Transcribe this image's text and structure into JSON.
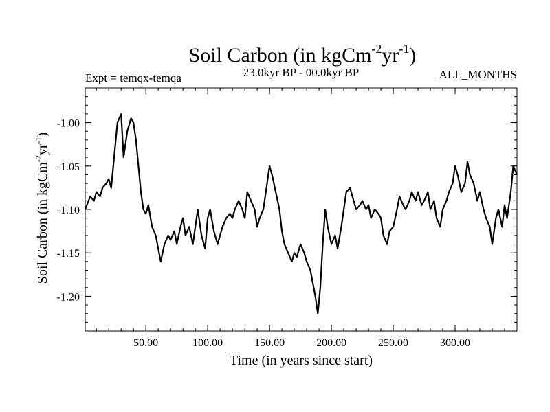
{
  "chart_data": {
    "type": "line",
    "title": {
      "base": "Soil Carbon (in kgCm",
      "sup1": "-2",
      "mid": "yr",
      "sup2": "-1",
      "end": ")"
    },
    "subtitle_left": "Expt = temqx-temqa",
    "subtitle_center": "23.0kyr BP - 00.0kyr BP",
    "subtitle_right": "ALL_MONTHS",
    "xlabel": "Time (in years since start)",
    "ylabel": {
      "base": "Soil Carbon (in kgCm",
      "sup1": "-2",
      "mid": "yr",
      "sup2": "-1",
      "end": ")"
    },
    "xlim": [
      1,
      350
    ],
    "ylim": [
      -1.24,
      -0.96
    ],
    "xticks": [
      {
        "value": 50,
        "label": "50.00"
      },
      {
        "value": 100,
        "label": "100.00"
      },
      {
        "value": 150,
        "label": "150.00"
      },
      {
        "value": 200,
        "label": "200.00"
      },
      {
        "value": 250,
        "label": "250.00"
      },
      {
        "value": 300,
        "label": "300.00"
      }
    ],
    "xminor_step": 10,
    "yticks": [
      {
        "value": -1.0,
        "label": "-1.00"
      },
      {
        "value": -1.05,
        "label": "-1.05"
      },
      {
        "value": -1.1,
        "label": "-1.10"
      },
      {
        "value": -1.15,
        "label": "-1.15"
      },
      {
        "value": -1.2,
        "label": "-1.20"
      }
    ],
    "yminor_step": 0.01,
    "grid": false,
    "series": [
      {
        "name": "Soil Carbon",
        "color": "#000000",
        "x": [
          1,
          5,
          8,
          10,
          13,
          15,
          18,
          20,
          22,
          25,
          27,
          30,
          32,
          35,
          38,
          40,
          42,
          44,
          46,
          48,
          50,
          52,
          55,
          58,
          60,
          62,
          65,
          68,
          70,
          73,
          75,
          78,
          80,
          82,
          85,
          88,
          90,
          92,
          95,
          98,
          100,
          102,
          105,
          108,
          110,
          112,
          115,
          118,
          120,
          122,
          125,
          128,
          130,
          132,
          135,
          138,
          140,
          142,
          145,
          148,
          150,
          152,
          155,
          158,
          160,
          162,
          165,
          168,
          170,
          172,
          175,
          178,
          180,
          183,
          185,
          187,
          189,
          191,
          193,
          195,
          197,
          200,
          203,
          205,
          208,
          210,
          212,
          215,
          218,
          220,
          223,
          225,
          228,
          230,
          232,
          235,
          238,
          240,
          242,
          245,
          247,
          250,
          253,
          255,
          258,
          260,
          263,
          265,
          268,
          270,
          273,
          275,
          278,
          280,
          283,
          285,
          288,
          290,
          293,
          295,
          298,
          300,
          302,
          305,
          308,
          310,
          312,
          315,
          318,
          320,
          323,
          325,
          328,
          330,
          333,
          335,
          338,
          340,
          342,
          345,
          347,
          350
        ],
        "values": [
          -1.1,
          -1.085,
          -1.09,
          -1.08,
          -1.085,
          -1.075,
          -1.07,
          -1.065,
          -1.075,
          -1.03,
          -1.0,
          -0.99,
          -1.04,
          -1.01,
          -0.995,
          -1.0,
          -1.02,
          -1.05,
          -1.08,
          -1.1,
          -1.105,
          -1.095,
          -1.12,
          -1.13,
          -1.145,
          -1.16,
          -1.14,
          -1.13,
          -1.135,
          -1.125,
          -1.14,
          -1.12,
          -1.11,
          -1.13,
          -1.12,
          -1.14,
          -1.12,
          -1.1,
          -1.13,
          -1.145,
          -1.11,
          -1.1,
          -1.125,
          -1.14,
          -1.13,
          -1.12,
          -1.11,
          -1.105,
          -1.11,
          -1.1,
          -1.09,
          -1.1,
          -1.11,
          -1.08,
          -1.09,
          -1.1,
          -1.12,
          -1.11,
          -1.1,
          -1.07,
          -1.05,
          -1.06,
          -1.08,
          -1.1,
          -1.125,
          -1.14,
          -1.15,
          -1.16,
          -1.15,
          -1.155,
          -1.14,
          -1.15,
          -1.16,
          -1.17,
          -1.185,
          -1.2,
          -1.22,
          -1.19,
          -1.14,
          -1.1,
          -1.12,
          -1.14,
          -1.13,
          -1.145,
          -1.12,
          -1.1,
          -1.08,
          -1.075,
          -1.09,
          -1.1,
          -1.095,
          -1.09,
          -1.1,
          -1.095,
          -1.11,
          -1.1,
          -1.105,
          -1.11,
          -1.13,
          -1.14,
          -1.125,
          -1.12,
          -1.1,
          -1.085,
          -1.095,
          -1.1,
          -1.09,
          -1.08,
          -1.09,
          -1.08,
          -1.095,
          -1.09,
          -1.08,
          -1.1,
          -1.09,
          -1.11,
          -1.12,
          -1.1,
          -1.09,
          -1.08,
          -1.07,
          -1.05,
          -1.06,
          -1.08,
          -1.07,
          -1.045,
          -1.06,
          -1.07,
          -1.09,
          -1.08,
          -1.1,
          -1.11,
          -1.12,
          -1.14,
          -1.11,
          -1.1,
          -1.12,
          -1.095,
          -1.11,
          -1.08,
          -1.05,
          -1.06
        ]
      }
    ]
  }
}
